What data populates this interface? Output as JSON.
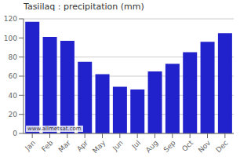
{
  "chart_data": {
    "type": "bar",
    "title": "Tasiilaq : precipitation (mm)",
    "categories": [
      "Jan",
      "Feb",
      "Mar",
      "Apr",
      "May",
      "Jun",
      "Jul",
      "Aug",
      "Sep",
      "Oct",
      "Nov",
      "Dec"
    ],
    "values": [
      117,
      101,
      97,
      75,
      62,
      49,
      46,
      65,
      73,
      85,
      96,
      105
    ],
    "color": "#2222cc",
    "ylim": [
      0,
      120
    ],
    "yticks": [
      0,
      20,
      40,
      60,
      80,
      100,
      120
    ],
    "grid": true,
    "annotations": [
      "www.allmetsat.com"
    ]
  }
}
